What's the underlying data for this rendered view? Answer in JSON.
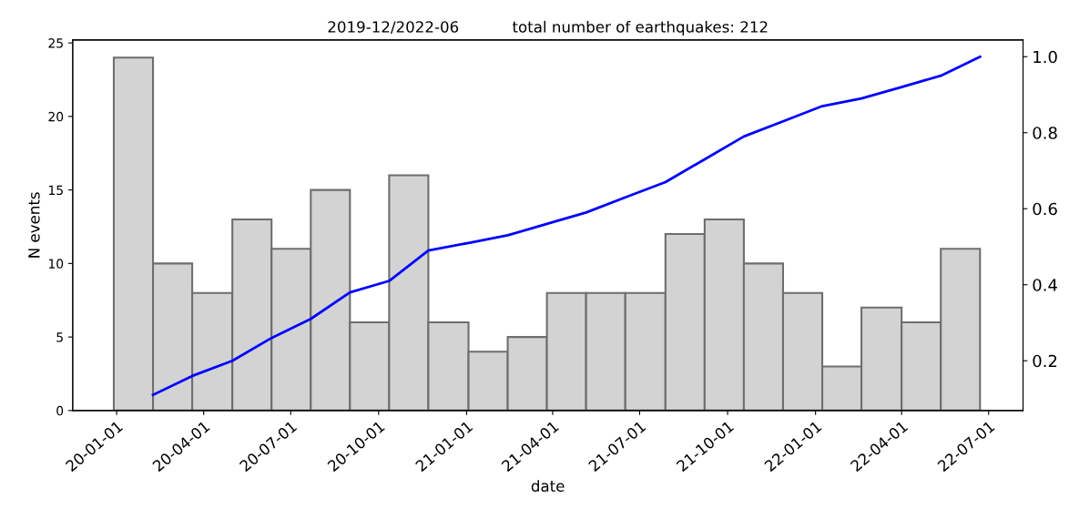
{
  "chart_data": {
    "type": "histogram",
    "title": "2019-12/2022-06           total number of earthquakes: 212",
    "xlabel": "date",
    "ylabel": "N events",
    "bins": [
      "2019-12-29",
      "2020-02-08",
      "2020-03-20",
      "2020-05-01",
      "2020-06-11",
      "2020-07-22",
      "2020-09-01",
      "2020-10-12",
      "2020-11-22",
      "2021-01-03",
      "2021-02-13",
      "2021-03-26",
      "2021-05-06",
      "2021-06-16",
      "2021-07-28",
      "2021-09-07",
      "2021-10-18",
      "2021-11-28",
      "2022-01-08",
      "2022-02-18",
      "2022-04-01",
      "2022-05-12",
      "2022-06-22"
    ],
    "series": [
      {
        "color": "#d3d3d3",
        "values": [
          24,
          10,
          8,
          13,
          11,
          15,
          6,
          16,
          6,
          4,
          5,
          8,
          8,
          8,
          12,
          13,
          10,
          8,
          3,
          7,
          6,
          11
        ]
      },
      {
        "type": "line",
        "axis": "y2",
        "color": "#0000ff",
        "x": [
          "2020-02-08",
          "2020-03-20",
          "2020-05-01",
          "2020-06-11",
          "2020-07-22",
          "2020-09-01",
          "2020-10-12",
          "2020-11-22",
          "2021-01-03",
          "2021-02-13",
          "2021-03-26",
          "2021-05-06",
          "2021-06-16",
          "2021-07-28",
          "2021-09-07",
          "2021-10-18",
          "2021-11-28",
          "2022-01-08",
          "2022-02-18",
          "2022-04-01",
          "2022-05-12",
          "2022-06-22"
        ],
        "values": [
          0.11,
          0.16,
          0.2,
          0.26,
          0.31,
          0.38,
          0.41,
          0.49,
          0.51,
          0.53,
          0.56,
          0.59,
          0.63,
          0.67,
          0.73,
          0.79,
          0.83,
          0.87,
          0.89,
          0.92,
          0.95,
          1.0
        ]
      }
    ],
    "xlim": [
      "2019-11-16",
      "2022-08-06"
    ],
    "xticks": [
      {
        "value": "2020-01-01",
        "label": "20-01-01"
      },
      {
        "value": "2020-04-01",
        "label": "20-04-01"
      },
      {
        "value": "2020-07-01",
        "label": "20-07-01"
      },
      {
        "value": "2020-10-01",
        "label": "20-10-01"
      },
      {
        "value": "2021-01-01",
        "label": "21-01-01"
      },
      {
        "value": "2021-04-01",
        "label": "21-04-01"
      },
      {
        "value": "2021-07-01",
        "label": "21-07-01"
      },
      {
        "value": "2021-10-01",
        "label": "21-10-01"
      },
      {
        "value": "2022-01-01",
        "label": "22-01-01"
      },
      {
        "value": "2022-04-01",
        "label": "22-04-01"
      },
      {
        "value": "2022-07-01",
        "label": "22-07-01"
      }
    ],
    "ylim": [
      0,
      25.2
    ],
    "yticks": [
      0,
      5,
      10,
      15,
      20,
      25
    ],
    "y2lim": [
      0.069,
      1.044
    ],
    "y2ticks": [
      {
        "value": 0.2,
        "label": "0.2"
      },
      {
        "value": 0.4,
        "label": "0.4"
      },
      {
        "value": 0.6,
        "label": "0.6"
      },
      {
        "value": 0.8,
        "label": "0.8"
      },
      {
        "value": 1.0,
        "label": "1.0"
      }
    ],
    "grid": false
  }
}
